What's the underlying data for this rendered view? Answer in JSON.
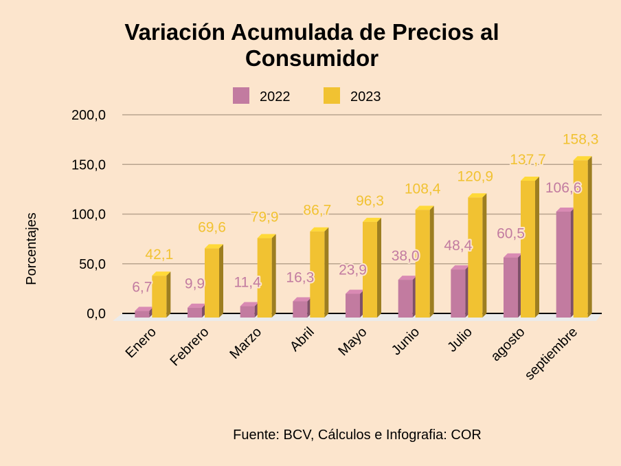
{
  "chart_data": {
    "type": "bar",
    "title_lines": [
      "Variación Acumulada de Precios al",
      "Consumidor"
    ],
    "ylabel": "Porcentajes",
    "xlabel": "",
    "ylim": [
      0,
      200
    ],
    "yticks": [
      "0,0",
      "50,0",
      "100,0",
      "150,0",
      "200,0"
    ],
    "ytick_values": [
      0,
      50,
      100,
      150,
      200
    ],
    "grid": true,
    "legend_position": "top-center",
    "categories": [
      "Enero",
      "Febrero",
      "Marzo",
      "Abril",
      "Mayo",
      "Junio",
      "Julio",
      "agosto",
      "septiembre"
    ],
    "series": [
      {
        "name": "2022",
        "color": "#c27ba0",
        "values": [
          6.7,
          9.9,
          11.4,
          16.3,
          23.9,
          38.0,
          48.4,
          60.5,
          106.6
        ],
        "labels": [
          "6,7",
          "9,9",
          "11,4",
          "16,3",
          "23,9",
          "38,0",
          "48,4",
          "60,5",
          "106,6"
        ]
      },
      {
        "name": "2023",
        "color": "#f1c232",
        "values": [
          42.1,
          69.6,
          79.9,
          86.7,
          96.3,
          108.4,
          120.9,
          137.7,
          158.3
        ],
        "labels": [
          "42,1",
          "69,6",
          "79,9",
          "86,7",
          "96,3",
          "108,4",
          "120,9",
          "137,7",
          "158,3"
        ]
      }
    ],
    "source_note": "Fuente: BCV,  Cálculos e Infografia: COR"
  }
}
